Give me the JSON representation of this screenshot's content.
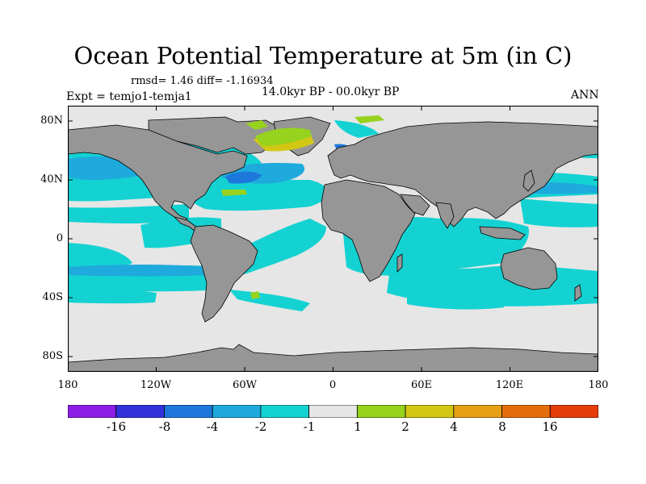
{
  "title": "Ocean Potential Temperature at 5m (in C)",
  "stats_line": "rmsd= 1.46 diff= -1.16934",
  "experiment": "Expt = temjo1-temja1",
  "period": "14.0kyr BP - 00.0kyr BP",
  "season": "ANN",
  "lat_labels": [
    "80N",
    "40N",
    "0",
    "40S",
    "80S"
  ],
  "lon_labels": [
    "180",
    "120W",
    "60W",
    "0",
    "60E",
    "120E",
    "180"
  ],
  "colorbar": {
    "labels": [
      "-16",
      "-8",
      "-4",
      "-2",
      "-1",
      "1",
      "2",
      "4",
      "8",
      "16"
    ],
    "colors": [
      "#8c1ee6",
      "#3232dc",
      "#1e78dc",
      "#1eaadc",
      "#14d2d2",
      "#e6e6e6",
      "#96d21e",
      "#d2c814",
      "#e6a014",
      "#e66e0a",
      "#e63c0a"
    ]
  },
  "colors": {
    "land": "#969696",
    "no_change": "#e6e6e6",
    "cool_1_2": "#14d2d2",
    "cool_2_4": "#1eaadc",
    "cool_4_8": "#1e78dc",
    "cool_8_16": "#3232dc",
    "warm_1_2": "#96d21e",
    "warm_2_4": "#d2c814"
  }
}
